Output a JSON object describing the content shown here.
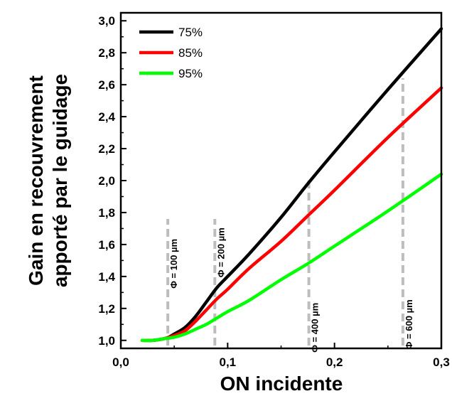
{
  "chart_data": {
    "type": "line",
    "xlabel": "ON incidente",
    "ylabel_lines": [
      "Gain en recouvrement",
      "apporté par le guidage"
    ],
    "xlim": [
      0.0,
      0.3
    ],
    "ylim": [
      0.95,
      3.05
    ],
    "x_ticks": [
      {
        "value": 0.0,
        "label": "0,0"
      },
      {
        "value": 0.1,
        "label": "0,1"
      },
      {
        "value": 0.2,
        "label": "0,2"
      },
      {
        "value": 0.3,
        "label": "0,3"
      }
    ],
    "y_ticks": [
      {
        "value": 1.0,
        "label": "1,0"
      },
      {
        "value": 1.2,
        "label": "1,2"
      },
      {
        "value": 1.4,
        "label": "1,4"
      },
      {
        "value": 1.6,
        "label": "1,6"
      },
      {
        "value": 1.8,
        "label": "1,8"
      },
      {
        "value": 2.0,
        "label": "2,0"
      },
      {
        "value": 2.2,
        "label": "2,2"
      },
      {
        "value": 2.4,
        "label": "2,4"
      },
      {
        "value": 2.6,
        "label": "2,6"
      },
      {
        "value": 2.8,
        "label": "2,8"
      },
      {
        "value": 3.0,
        "label": "3,0"
      }
    ],
    "legend_position": "top-left",
    "series": [
      {
        "name": "75%",
        "color": "#000000",
        "x": [
          0.02,
          0.03,
          0.04,
          0.045,
          0.05,
          0.06,
          0.07,
          0.08,
          0.09,
          0.1,
          0.12,
          0.15,
          0.175,
          0.2,
          0.25,
          0.3
        ],
        "y": [
          1.0,
          1.0,
          1.01,
          1.02,
          1.04,
          1.08,
          1.15,
          1.24,
          1.33,
          1.4,
          1.54,
          1.77,
          1.98,
          2.18,
          2.57,
          2.95
        ]
      },
      {
        "name": "85%",
        "color": "#ff0000",
        "x": [
          0.02,
          0.03,
          0.04,
          0.05,
          0.06,
          0.07,
          0.08,
          0.09,
          0.1,
          0.12,
          0.15,
          0.175,
          0.2,
          0.25,
          0.3
        ],
        "y": [
          1.0,
          1.0,
          1.01,
          1.03,
          1.06,
          1.12,
          1.19,
          1.26,
          1.32,
          1.45,
          1.62,
          1.78,
          1.94,
          2.27,
          2.58
        ]
      },
      {
        "name": "95%",
        "color": "#00ff00",
        "x": [
          0.02,
          0.03,
          0.04,
          0.05,
          0.06,
          0.07,
          0.08,
          0.09,
          0.1,
          0.12,
          0.15,
          0.175,
          0.2,
          0.25,
          0.3
        ],
        "y": [
          1.0,
          1.0,
          1.01,
          1.02,
          1.04,
          1.07,
          1.1,
          1.14,
          1.18,
          1.25,
          1.38,
          1.48,
          1.59,
          1.81,
          2.04
        ]
      }
    ],
    "annotations": [
      {
        "x": 0.044,
        "y_top": 1.76,
        "label": "Φ = 100 µm",
        "label_side": "right",
        "label_y": 1.48
      },
      {
        "x": 0.088,
        "y_top": 1.76,
        "label": "Φ = 200 µm",
        "label_side": "right",
        "label_y": 1.55
      },
      {
        "x": 0.176,
        "y_top": 2.0,
        "label": "Φ = 400 µm",
        "label_side": "right",
        "label_y": 1.08
      },
      {
        "x": 0.264,
        "y_top": 2.64,
        "label": "Φ = 600 µm",
        "label_side": "right",
        "label_y": 1.1
      }
    ],
    "reference_line_color": "#bdbdbd"
  }
}
